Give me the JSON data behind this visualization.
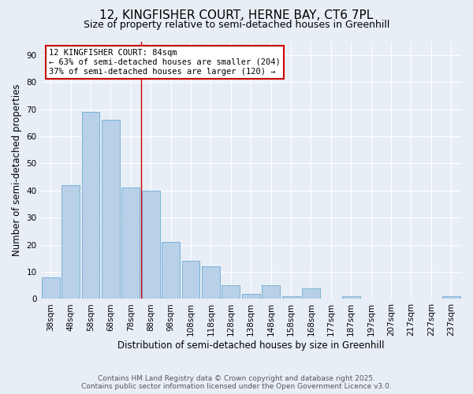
{
  "title_line1": "12, KINGFISHER COURT, HERNE BAY, CT6 7PL",
  "title_line2": "Size of property relative to semi-detached houses in Greenhill",
  "xlabel": "Distribution of semi-detached houses by size in Greenhill",
  "ylabel": "Number of semi-detached properties",
  "categories": [
    "38sqm",
    "48sqm",
    "58sqm",
    "68sqm",
    "78sqm",
    "88sqm",
    "98sqm",
    "108sqm",
    "118sqm",
    "128sqm",
    "138sqm",
    "148sqm",
    "158sqm",
    "168sqm",
    "177sqm",
    "187sqm",
    "197sqm",
    "207sqm",
    "217sqm",
    "227sqm",
    "237sqm"
  ],
  "values": [
    8,
    42,
    69,
    66,
    41,
    40,
    21,
    14,
    12,
    5,
    2,
    5,
    1,
    4,
    0,
    1,
    0,
    0,
    0,
    0,
    1
  ],
  "bar_color": "#b8d0e8",
  "bar_edge_color": "#6aaad4",
  "vline_color": "#cc0000",
  "annotation_title": "12 KINGFISHER COURT: 84sqm",
  "annotation_line2": "← 63% of semi-detached houses are smaller (204)",
  "annotation_line3": "37% of semi-detached houses are larger (120) →",
  "annotation_box_color": "#ffffff",
  "annotation_box_edge": "#cc0000",
  "ylim": [
    0,
    95
  ],
  "yticks": [
    0,
    10,
    20,
    30,
    40,
    50,
    60,
    70,
    80,
    90
  ],
  "background_color": "#e8eef5",
  "plot_bg_color": "#e8eef5",
  "grid_color": "#ffffff",
  "footer_line1": "Contains HM Land Registry data © Crown copyright and database right 2025.",
  "footer_line2": "Contains public sector information licensed under the Open Government Licence v3.0.",
  "title_fontsize": 11,
  "subtitle_fontsize": 9,
  "axis_label_fontsize": 8.5,
  "tick_fontsize": 7.5,
  "annotation_fontsize": 7.5,
  "footer_fontsize": 6.5,
  "vline_bin_index": 4
}
